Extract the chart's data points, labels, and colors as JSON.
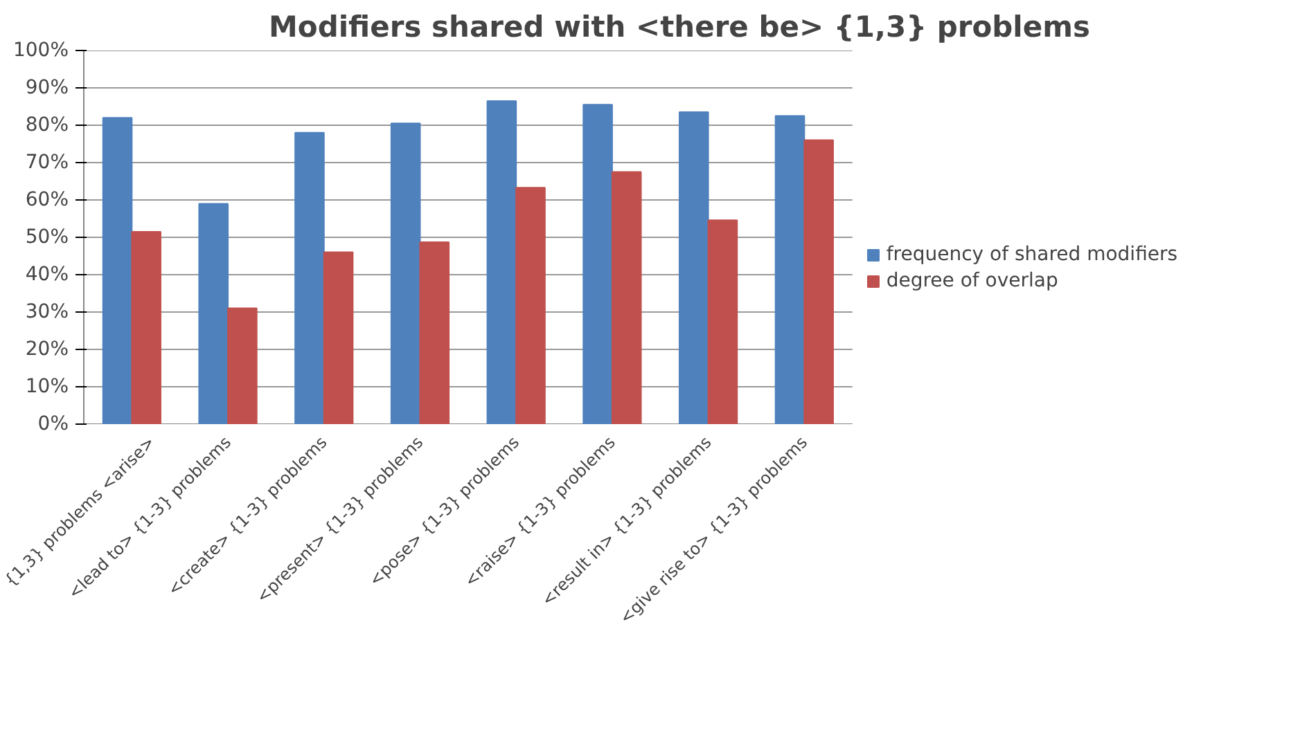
{
  "chart_data": {
    "type": "bar",
    "title": "Modifiers shared with <there be> {1,3} problems",
    "categories": [
      "{1,3} problems <arise>",
      "<lead to> {1-3} problems",
      "<create> {1-3} problems",
      "<present> {1-3} problems",
      "<pose> {1-3} problems",
      "<raise> {1-3} problems",
      "<result in> {1-3} problems",
      "<give rise to> {1-3} problems"
    ],
    "series": [
      {
        "name": "frequency of shared modifiers",
        "color": "#4f81bd",
        "values": [
          82,
          59,
          78,
          80.5,
          86.5,
          85.5,
          83.5,
          82.5
        ]
      },
      {
        "name": "degree of overlap",
        "color": "#c0504d",
        "values": [
          51.5,
          31,
          46,
          48.7,
          63.3,
          67.5,
          54.6,
          76
        ]
      }
    ],
    "ylim": [
      0,
      100
    ],
    "yticks": [
      {
        "value": 0,
        "label": "0%"
      },
      {
        "value": 10,
        "label": "10%"
      },
      {
        "value": 20,
        "label": "20%"
      },
      {
        "value": 30,
        "label": "30%"
      },
      {
        "value": 40,
        "label": "40%"
      },
      {
        "value": 50,
        "label": "50%"
      },
      {
        "value": 60,
        "label": "60%"
      },
      {
        "value": 70,
        "label": "70%"
      },
      {
        "value": 80,
        "label": "80%"
      },
      {
        "value": 90,
        "label": "90%"
      },
      {
        "value": 100,
        "label": "100%"
      }
    ],
    "grid": "y",
    "legend": "right"
  }
}
